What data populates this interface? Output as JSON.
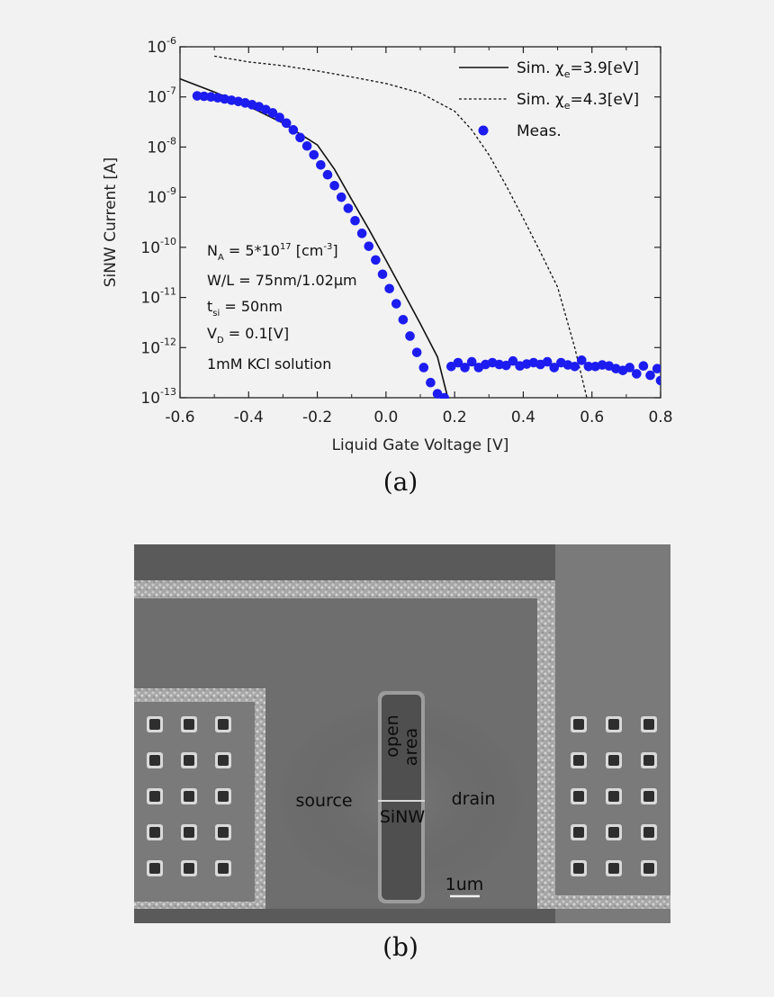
{
  "chart_data": {
    "type": "scatter",
    "x_scale": "linear",
    "y_scale": "log",
    "xlabel": "Liquid Gate Voltage [V]",
    "ylabel": "SiNW Current [A]",
    "xlim": [
      -0.6,
      0.8
    ],
    "ylim": [
      1e-13,
      1e-06
    ],
    "x_ticks": [
      "-0.6",
      "-0.4",
      "-0.2",
      "0.0",
      "0.2",
      "0.4",
      "0.6",
      "0.8"
    ],
    "y_ticks": [
      {
        "base": "10",
        "exp": "-13"
      },
      {
        "base": "10",
        "exp": "-12"
      },
      {
        "base": "10",
        "exp": "-11"
      },
      {
        "base": "10",
        "exp": "-10"
      },
      {
        "base": "10",
        "exp": "-9"
      },
      {
        "base": "10",
        "exp": "-8"
      },
      {
        "base": "10",
        "exp": "-7"
      },
      {
        "base": "10",
        "exp": "-6"
      }
    ],
    "legend_position": "top-right",
    "grid": false,
    "series": [
      {
        "name": "Sim. χe=3.9[eV]",
        "style": "solid-line",
        "color": "#111111",
        "x": [
          -0.6,
          -0.5,
          -0.4,
          -0.3,
          -0.2,
          -0.15,
          -0.1,
          -0.05,
          0.0,
          0.05,
          0.1,
          0.15,
          0.18
        ],
        "y": [
          2.3e-07,
          1.25e-07,
          6.5e-08,
          3e-08,
          1.1e-08,
          3.6e-09,
          9e-10,
          2.3e-10,
          5.5e-11,
          1.3e-11,
          3e-12,
          6.5e-13,
          1e-13
        ]
      },
      {
        "name": "Sim. χe=4.3[eV]",
        "style": "dashed-line",
        "color": "#111111",
        "x": [
          -0.5,
          -0.4,
          -0.3,
          -0.2,
          -0.1,
          0.0,
          0.1,
          0.2,
          0.25,
          0.3,
          0.35,
          0.4,
          0.45,
          0.5,
          0.55,
          0.585
        ],
        "y": [
          6.5e-07,
          5e-07,
          4.2e-07,
          3.3e-07,
          2.5e-07,
          1.85e-07,
          1.2e-07,
          5.2e-08,
          2.2e-08,
          7e-09,
          1.7e-09,
          3.8e-10,
          8e-11,
          1.6e-11,
          1e-12,
          1e-13
        ]
      },
      {
        "name": "Meas.",
        "style": "markers",
        "color": "#1c1cf0",
        "x": [
          -0.55,
          -0.53,
          -0.51,
          -0.49,
          -0.47,
          -0.45,
          -0.43,
          -0.41,
          -0.39,
          -0.37,
          -0.35,
          -0.33,
          -0.31,
          -0.29,
          -0.27,
          -0.25,
          -0.23,
          -0.21,
          -0.19,
          -0.17,
          -0.15,
          -0.13,
          -0.11,
          -0.09,
          -0.07,
          -0.05,
          -0.03,
          -0.01,
          0.01,
          0.03,
          0.05,
          0.07,
          0.09,
          0.11,
          0.13,
          0.15,
          0.17,
          0.19,
          0.21,
          0.23,
          0.25,
          0.27,
          0.29,
          0.31,
          0.33,
          0.35,
          0.37,
          0.39,
          0.41,
          0.43,
          0.45,
          0.47,
          0.49,
          0.51,
          0.53,
          0.55,
          0.57,
          0.59,
          0.61,
          0.63,
          0.65,
          0.67,
          0.69,
          0.71,
          0.73,
          0.75,
          0.77,
          0.79,
          0.8
        ],
        "y": [
          1.05e-07,
          1.03e-07,
          1e-07,
          9.6e-08,
          9.1e-08,
          8.6e-08,
          8.1e-08,
          7.6e-08,
          7e-08,
          6.4e-08,
          5.6e-08,
          4.8e-08,
          3.9e-08,
          3e-08,
          2.2e-08,
          1.55e-08,
          1.05e-08,
          7e-09,
          4.4e-09,
          2.8e-09,
          1.7e-09,
          1e-09,
          6e-10,
          3.4e-10,
          1.9e-10,
          1.05e-10,
          5.6e-11,
          2.9e-11,
          1.5e-11,
          7.5e-12,
          3.6e-12,
          1.7e-12,
          8e-13,
          4e-13,
          2e-13,
          1.2e-13,
          1e-13,
          4.2e-13,
          5e-13,
          4e-13,
          5.2e-13,
          4e-13,
          4.6e-13,
          5e-13,
          4.6e-13,
          4.4e-13,
          5.4e-13,
          4.3e-13,
          4.7e-13,
          5e-13,
          4.6e-13,
          5.2e-13,
          4e-13,
          5e-13,
          4.5e-13,
          4.2e-13,
          5.6e-13,
          4.2e-13,
          4.2e-13,
          4.5e-13,
          4.3e-13,
          3.8e-13,
          3.5e-13,
          4e-13,
          3e-13,
          4.3e-13,
          2.8e-13,
          3.8e-13,
          2.2e-13
        ]
      }
    ],
    "legend": [
      {
        "name": "Sim. χ",
        "sub": "e",
        "suffix": "=3.9[eV]"
      },
      {
        "name": "Sim. χ",
        "sub": "e",
        "suffix": "=4.3[eV]"
      },
      {
        "name": "Meas.",
        "sub": "",
        "suffix": ""
      }
    ],
    "annotations": {
      "na": {
        "pre": "N",
        "sub": "A",
        "mid": " = 5*10",
        "sup": "17",
        "post": " [cm",
        "sup2": "-3",
        "post2": "]"
      },
      "wl": {
        "pre": "W/L = 75nm/1.02",
        "mu": "μ",
        "post": "m"
      },
      "tsi": {
        "pre": "t",
        "sub": "si",
        "post": " = 50nm"
      },
      "vd": {
        "pre": "V",
        "sub": "D",
        "post": " = 0.1[V]"
      },
      "kcl": "1mM KCl solution"
    }
  },
  "panel_a_label": "(a)",
  "panel_b_label": "(b)",
  "sem_image": {
    "labels": {
      "source": "source",
      "drain": "drain",
      "sinw": "SiNW",
      "open_area_line1": "open",
      "open_area_line2": "area",
      "scale_bar": "1um"
    },
    "colors": {
      "background": "#5a5a5a",
      "plate": "#6e6e6e",
      "rim": "#9a9a9a",
      "pad": "#7a7a7a",
      "hole": "#2e2e2e",
      "channel": "#4f4f4f",
      "wire": "#d8d8d8"
    }
  }
}
